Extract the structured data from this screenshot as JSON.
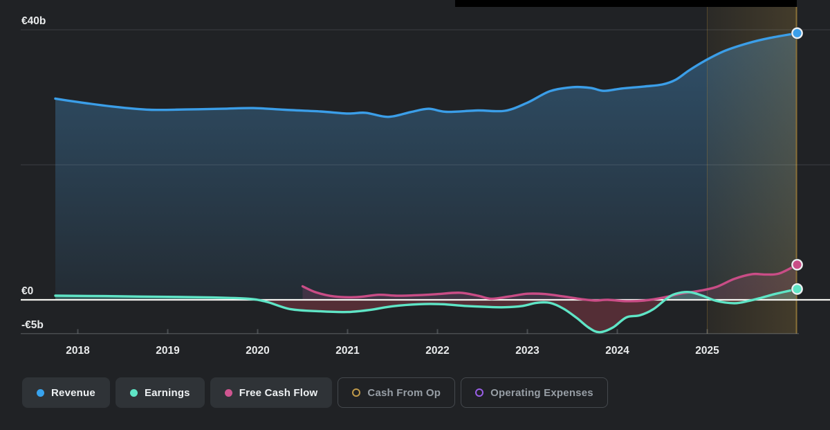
{
  "panel": {
    "background": "#202225",
    "tooltip_bar_color": "#000000"
  },
  "y_axis_labels": [
    {
      "text": "€40b",
      "value": 40
    },
    {
      "text": "€0",
      "value": 0
    },
    {
      "text": "-€5b",
      "value": -5
    }
  ],
  "legend": {
    "items": [
      {
        "label": "Revenue",
        "color": "#38a3ee",
        "style": "filled"
      },
      {
        "label": "Earnings",
        "color": "#5fe5c6",
        "style": "filled"
      },
      {
        "label": "Free Cash Flow",
        "color": "#cf5590",
        "style": "filled"
      },
      {
        "label": "Cash From Op",
        "color": "#c09a4a",
        "style": "outline"
      },
      {
        "label": "Operating Expenses",
        "color": "#9a5fe8",
        "style": "outline"
      }
    ]
  },
  "chart_data": {
    "type": "line",
    "title": "",
    "xlabel": "",
    "ylabel": "",
    "currency": "€",
    "unit": "billions",
    "x_range": [
      2017.75,
      2026.0
    ],
    "ylim": [
      -5,
      40
    ],
    "x_ticks": [
      2018,
      2019,
      2020,
      2021,
      2022,
      2023,
      2024,
      2025
    ],
    "gridlines": [
      40,
      20
    ],
    "zero_line_color": "#f4f4f0",
    "grid_color": "rgba(205,212,218,0.16)",
    "axis_color": "rgba(205,212,218,0.24)",
    "tick_label_color": "#e9ebec",
    "forecast_band": {
      "start": 2025.0,
      "end": 2026.0,
      "color": "#a8843a",
      "edge_color": "#8a7038"
    },
    "series": [
      {
        "name": "Revenue",
        "color": "#3b9ee8",
        "fill_top": "rgba(74,158,222,0.38)",
        "fill_bottom": "rgba(74,158,222,0.08)",
        "points": [
          [
            2017.75,
            29.8
          ],
          [
            2018.0,
            29.3
          ],
          [
            2018.4,
            28.6
          ],
          [
            2018.8,
            28.15
          ],
          [
            2019.2,
            28.2
          ],
          [
            2019.6,
            28.3
          ],
          [
            2019.95,
            28.4
          ],
          [
            2020.3,
            28.15
          ],
          [
            2020.7,
            27.9
          ],
          [
            2021.0,
            27.6
          ],
          [
            2021.2,
            27.7
          ],
          [
            2021.45,
            27.1
          ],
          [
            2021.7,
            27.8
          ],
          [
            2021.9,
            28.3
          ],
          [
            2022.1,
            27.85
          ],
          [
            2022.45,
            28.05
          ],
          [
            2022.75,
            28.0
          ],
          [
            2023.0,
            29.2
          ],
          [
            2023.25,
            30.9
          ],
          [
            2023.5,
            31.5
          ],
          [
            2023.7,
            31.4
          ],
          [
            2023.85,
            30.95
          ],
          [
            2024.05,
            31.3
          ],
          [
            2024.3,
            31.6
          ],
          [
            2024.5,
            31.9
          ],
          [
            2024.65,
            32.6
          ],
          [
            2024.8,
            34.0
          ],
          [
            2025.0,
            35.6
          ],
          [
            2025.2,
            36.9
          ],
          [
            2025.45,
            38.0
          ],
          [
            2025.7,
            38.8
          ],
          [
            2026.0,
            39.5
          ]
        ]
      },
      {
        "name": "Free Cash Flow",
        "color": "#c94d86",
        "fill_pos": "rgba(201,85,144,0.18)",
        "fill_neg": "rgba(205,75,95,0.28)",
        "points": [
          [
            2020.5,
            2.0
          ],
          [
            2020.65,
            1.1
          ],
          [
            2020.85,
            0.5
          ],
          [
            2021.1,
            0.4
          ],
          [
            2021.35,
            0.75
          ],
          [
            2021.55,
            0.6
          ],
          [
            2021.8,
            0.7
          ],
          [
            2022.0,
            0.85
          ],
          [
            2022.25,
            1.05
          ],
          [
            2022.45,
            0.6
          ],
          [
            2022.6,
            0.15
          ],
          [
            2022.8,
            0.5
          ],
          [
            2023.0,
            0.9
          ],
          [
            2023.2,
            0.85
          ],
          [
            2023.4,
            0.5
          ],
          [
            2023.6,
            0.1
          ],
          [
            2023.75,
            -0.1
          ],
          [
            2023.9,
            0.0
          ],
          [
            2024.1,
            -0.2
          ],
          [
            2024.3,
            -0.1
          ],
          [
            2024.5,
            0.3
          ],
          [
            2024.7,
            0.9
          ],
          [
            2024.9,
            1.3
          ],
          [
            2025.1,
            1.9
          ],
          [
            2025.3,
            3.1
          ],
          [
            2025.5,
            3.8
          ],
          [
            2025.65,
            3.75
          ],
          [
            2025.8,
            3.9
          ],
          [
            2026.0,
            5.2
          ]
        ]
      },
      {
        "name": "Earnings",
        "color": "#5fe5c6",
        "fill_pos": "rgba(95,229,198,0.28)",
        "fill_neg": "rgba(205,75,95,0.30)",
        "points": [
          [
            2017.75,
            0.62
          ],
          [
            2018.3,
            0.55
          ],
          [
            2018.9,
            0.45
          ],
          [
            2019.5,
            0.35
          ],
          [
            2019.9,
            0.15
          ],
          [
            2020.1,
            -0.3
          ],
          [
            2020.37,
            -1.4
          ],
          [
            2020.7,
            -1.7
          ],
          [
            2021.0,
            -1.8
          ],
          [
            2021.25,
            -1.5
          ],
          [
            2021.5,
            -0.95
          ],
          [
            2021.8,
            -0.65
          ],
          [
            2022.05,
            -0.65
          ],
          [
            2022.3,
            -0.9
          ],
          [
            2022.55,
            -1.05
          ],
          [
            2022.75,
            -1.1
          ],
          [
            2022.95,
            -0.9
          ],
          [
            2023.1,
            -0.45
          ],
          [
            2023.25,
            -0.45
          ],
          [
            2023.4,
            -1.3
          ],
          [
            2023.55,
            -2.7
          ],
          [
            2023.68,
            -4.1
          ],
          [
            2023.8,
            -4.8
          ],
          [
            2023.95,
            -4.1
          ],
          [
            2024.1,
            -2.6
          ],
          [
            2024.25,
            -2.3
          ],
          [
            2024.4,
            -1.4
          ],
          [
            2024.55,
            0.2
          ],
          [
            2024.65,
            0.9
          ],
          [
            2024.8,
            1.15
          ],
          [
            2024.95,
            0.6
          ],
          [
            2025.1,
            -0.15
          ],
          [
            2025.3,
            -0.5
          ],
          [
            2025.45,
            -0.2
          ],
          [
            2025.6,
            0.3
          ],
          [
            2025.75,
            0.85
          ],
          [
            2025.9,
            1.3
          ],
          [
            2026.0,
            1.6
          ]
        ]
      }
    ]
  }
}
